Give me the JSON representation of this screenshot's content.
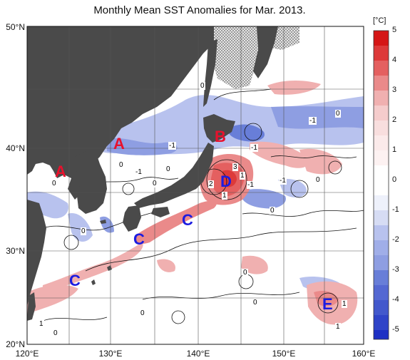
{
  "title": "Monthly Mean SST Anomalies for Mar. 2013.",
  "colorbar": {
    "unit": "[°C]",
    "ticks": [
      "5",
      "4",
      "3",
      "2",
      "1",
      "0",
      "-1",
      "-2",
      "-3",
      "-4",
      "-5"
    ],
    "colors_hot": [
      "#f0b0b0",
      "#ea8a8a",
      "#e46060",
      "#dd3a3a",
      "#d51616"
    ],
    "colors_cold": [
      "#b8c2ee",
      "#8e9ee2",
      "#687ed8",
      "#4258cc",
      "#1d30c4"
    ]
  },
  "axes": {
    "lat_labels": [
      "50°N",
      "40°N",
      "30°N",
      "20°N"
    ],
    "lon_labels": [
      "120°E",
      "130°E",
      "140°E",
      "150°E",
      "160°E"
    ],
    "lat_range": [
      20,
      50
    ],
    "lon_range": [
      120,
      160
    ]
  },
  "colors": {
    "land": "#4a4a4a",
    "sea_ice": "#dcdcdc",
    "label_red": "#e8112d",
    "label_blue": "#1c1ce0",
    "grid": "#555555"
  },
  "regions": [
    {
      "label": "A",
      "color": "red"
    },
    {
      "label": "A",
      "color": "red"
    },
    {
      "label": "B",
      "color": "red"
    },
    {
      "label": "C",
      "color": "blue"
    },
    {
      "label": "C",
      "color": "blue"
    },
    {
      "label": "C",
      "color": "blue"
    },
    {
      "label": "D",
      "color": "blue"
    },
    {
      "label": "E",
      "color": "blue"
    }
  ],
  "contour_labels": [
    "0",
    "-1",
    "0",
    "0",
    "-1",
    "0",
    "0",
    "0",
    "1",
    "2",
    "3",
    "1",
    "-1",
    "-1",
    "-1",
    "0",
    "0",
    "0",
    "0",
    "0",
    "0",
    "1",
    "1",
    "1",
    "0",
    "-1"
  ]
}
